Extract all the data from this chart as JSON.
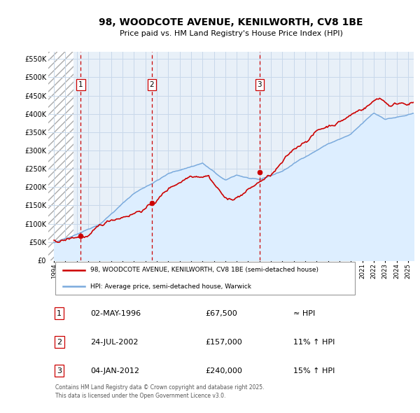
{
  "title_line1": "98, WOODCOTE AVENUE, KENILWORTH, CV8 1BE",
  "title_line2": "Price paid vs. HM Land Registry's House Price Index (HPI)",
  "ylabel_values": [
    "£0",
    "£50K",
    "£100K",
    "£150K",
    "£200K",
    "£250K",
    "£300K",
    "£350K",
    "£400K",
    "£450K",
    "£500K",
    "£550K"
  ],
  "ytick_vals": [
    0,
    50000,
    100000,
    150000,
    200000,
    250000,
    300000,
    350000,
    400000,
    450000,
    500000,
    550000
  ],
  "ylim": [
    0,
    570000
  ],
  "xlim_start": 1993.5,
  "xlim_end": 2025.5,
  "hatch_region_end": 1995.7,
  "purchases": [
    {
      "year_decimal": 1996.34,
      "price": 67500,
      "label": "1"
    },
    {
      "year_decimal": 2002.56,
      "price": 157000,
      "label": "2"
    },
    {
      "year_decimal": 2012.01,
      "price": 240000,
      "label": "3"
    }
  ],
  "purchase_line_color": "#cc0000",
  "purchase_marker_color": "#cc0000",
  "hpi_line_color": "#7aaadd",
  "hpi_fill_color": "#ddeeff",
  "grid_color": "#c8d8ea",
  "dashed_line_color": "#cc0000",
  "legend_label_red": "98, WOODCOTE AVENUE, KENILWORTH, CV8 1BE (semi-detached house)",
  "legend_label_blue": "HPI: Average price, semi-detached house, Warwick",
  "table_rows": [
    {
      "num": "1",
      "date": "02-MAY-1996",
      "price": "£67,500",
      "hpi": "≈ HPI"
    },
    {
      "num": "2",
      "date": "24-JUL-2002",
      "price": "£157,000",
      "hpi": "11% ↑ HPI"
    },
    {
      "num": "3",
      "date": "04-JAN-2012",
      "price": "£240,000",
      "hpi": "15% ↑ HPI"
    }
  ],
  "footnote": "Contains HM Land Registry data © Crown copyright and database right 2025.\nThis data is licensed under the Open Government Licence v3.0.",
  "background_plot": "#e8f0f8",
  "background_fig": "#ffffff"
}
